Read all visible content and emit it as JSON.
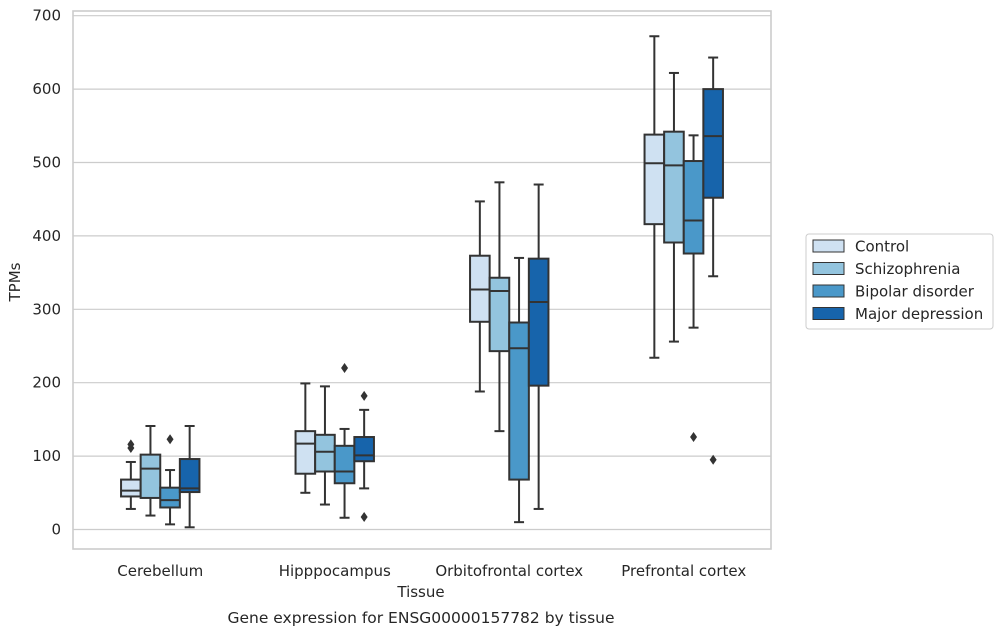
{
  "caption": "Gene expression for ENSG00000157782 by tissue",
  "colors": {
    "Control": "#cfe1f2",
    "Schizophrenia": "#93c4de",
    "Bipolar disorder": "#4a98c9",
    "Major depression": "#1764ab",
    "grid": "#cccccc",
    "line": "#333333"
  },
  "chart_data": {
    "type": "box",
    "xlabel": "Tissue",
    "ylabel": "TPMs",
    "ylim": [
      -28,
      705
    ],
    "yticks": [
      0,
      100,
      200,
      300,
      400,
      500,
      600,
      700
    ],
    "grid": "horizontal",
    "legend_position": "right",
    "categories": [
      "Cerebellum",
      "Hipppocampus",
      "Orbitofrontal cortex",
      "Prefrontal cortex"
    ],
    "series": [
      {
        "name": "Control",
        "boxes": [
          {
            "whislo": 28,
            "q1": 45,
            "med": 53,
            "q3": 68,
            "whishi": 92,
            "fliers": [
              111,
              116
            ]
          },
          {
            "whislo": 50,
            "q1": 76,
            "med": 117,
            "q3": 134,
            "whishi": 199,
            "fliers": []
          },
          {
            "whislo": 188,
            "q1": 283,
            "med": 327,
            "q3": 373,
            "whishi": 447,
            "fliers": []
          },
          {
            "whislo": 234,
            "q1": 416,
            "med": 499,
            "q3": 538,
            "whishi": 672,
            "fliers": []
          }
        ]
      },
      {
        "name": "Schizophrenia",
        "boxes": [
          {
            "whislo": 19,
            "q1": 43,
            "med": 83,
            "q3": 102,
            "whishi": 141,
            "fliers": []
          },
          {
            "whislo": 34,
            "q1": 79,
            "med": 106,
            "q3": 129,
            "whishi": 195,
            "fliers": []
          },
          {
            "whislo": 134,
            "q1": 243,
            "med": 325,
            "q3": 343,
            "whishi": 473,
            "fliers": []
          },
          {
            "whislo": 256,
            "q1": 391,
            "med": 496,
            "q3": 542,
            "whishi": 622,
            "fliers": []
          }
        ]
      },
      {
        "name": "Bipolar disorder",
        "boxes": [
          {
            "whislo": 7,
            "q1": 30,
            "med": 40,
            "q3": 57,
            "whishi": 81,
            "fliers": [
              123
            ]
          },
          {
            "whislo": 16,
            "q1": 63,
            "med": 79,
            "q3": 114,
            "whishi": 137,
            "fliers": [
              220
            ]
          },
          {
            "whislo": 10,
            "q1": 68,
            "med": 247,
            "q3": 282,
            "whishi": 370,
            "fliers": []
          },
          {
            "whislo": 275,
            "q1": 376,
            "med": 421,
            "q3": 502,
            "whishi": 537,
            "fliers": [
              126
            ]
          }
        ]
      },
      {
        "name": "Major depression",
        "boxes": [
          {
            "whislo": 3,
            "q1": 51,
            "med": 56,
            "q3": 96,
            "whishi": 141,
            "fliers": []
          },
          {
            "whislo": 56,
            "q1": 93,
            "med": 101,
            "q3": 126,
            "whishi": 163,
            "fliers": [
              17,
              182
            ]
          },
          {
            "whislo": 28,
            "q1": 196,
            "med": 310,
            "q3": 369,
            "whishi": 470,
            "fliers": []
          },
          {
            "whislo": 345,
            "q1": 452,
            "med": 536,
            "q3": 600,
            "whishi": 643,
            "fliers": [
              95
            ]
          }
        ]
      }
    ]
  }
}
